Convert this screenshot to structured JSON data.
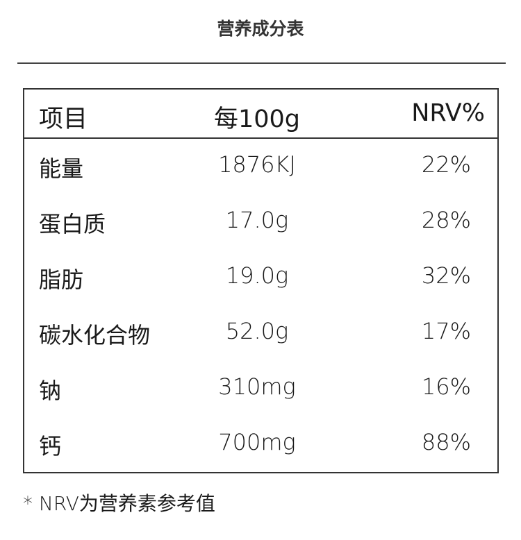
{
  "title": "营养成分表",
  "table": {
    "headers": [
      "项目",
      "每100g",
      "NRV%"
    ],
    "rows": [
      [
        "能量",
        "1876KJ",
        "22%"
      ],
      [
        "蛋白质",
        "17.0g",
        "28%"
      ],
      [
        "脂肪",
        "19.0g",
        "32%"
      ],
      [
        "碳水化合物",
        "52.0g",
        "17%"
      ],
      [
        "钠",
        "310mg",
        "16%"
      ],
      [
        "钙",
        "700mg",
        "88%"
      ]
    ]
  },
  "footnote": "* NRV为营养素参考值"
}
